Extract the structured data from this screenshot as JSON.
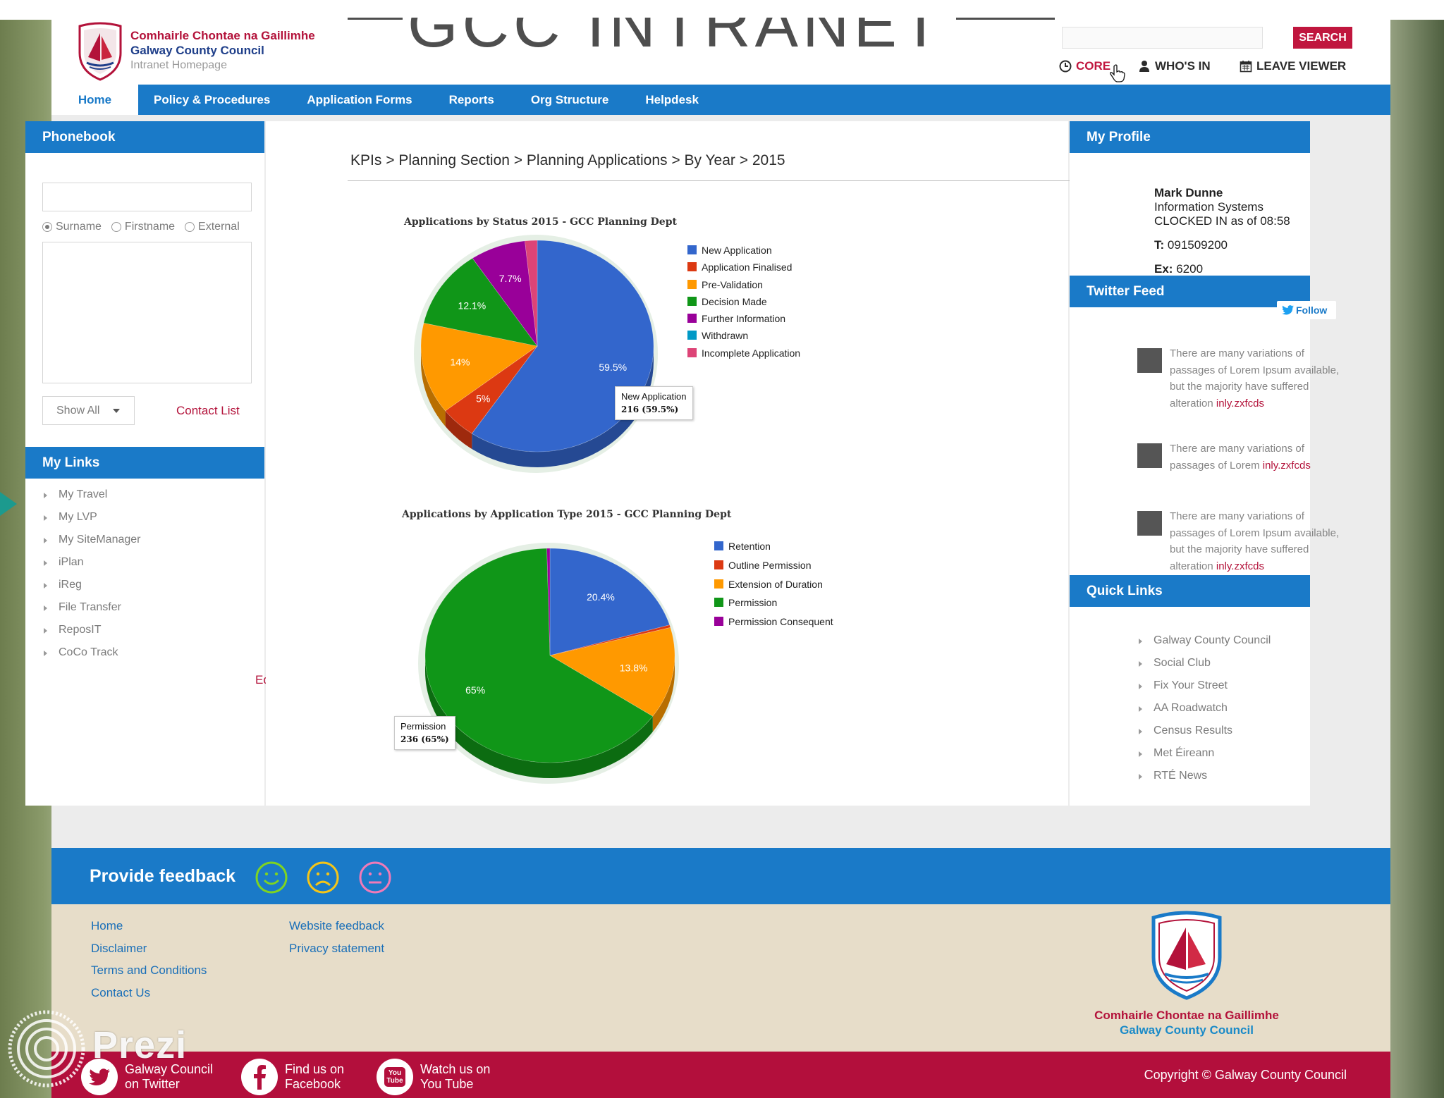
{
  "header": {
    "logo_irish": "Comhairle Chontae na Gaillimhe",
    "logo_english": "Galway County Council",
    "logo_sub": "Intranet Homepage",
    "title": "GCC INTRANET",
    "search_placeholder": "",
    "search_label": "SEARCH",
    "top_links": {
      "core": "CORE",
      "whos_in": "WHO'S IN",
      "leave_viewer": "LEAVE VIEWER"
    }
  },
  "nav": {
    "items": [
      "Home",
      "Policy & Procedures",
      "Application Forms",
      "Reports",
      "Org Structure",
      "Helpdesk"
    ],
    "active": "Home"
  },
  "phonebook": {
    "title": "Phonebook",
    "radios": [
      "Surname",
      "Firstname",
      "External"
    ],
    "selected_radio": "Surname",
    "show_all": "Show All",
    "contact_list": "Contact List"
  },
  "my_links": {
    "title": "My Links",
    "items": [
      "My Travel",
      "My LVP",
      "My SiteManager",
      "iPlan",
      "iReg",
      "File Transfer",
      "ReposIT",
      "CoCo Track"
    ],
    "edit": "Edit"
  },
  "breadcrumb": {
    "items": [
      "KPIs",
      "Planning Section",
      "Planning Applications",
      "By Year",
      "2015"
    ],
    "separator": ">"
  },
  "chart_data": [
    {
      "type": "pie",
      "title": "Applications by Status 2015 - GCC Planning Dept",
      "categories": [
        "New Application",
        "Application Finalised",
        "Pre-Validation",
        "Decision Made",
        "Further Information",
        "Withdrawn",
        "Incomplete Application"
      ],
      "values": [
        59.5,
        5,
        14,
        12.1,
        7.7,
        0,
        1.7
      ],
      "unit": "%",
      "colors": [
        "#3366cc",
        "#dc3912",
        "#ff9900",
        "#109618",
        "#990099",
        "#0099c6",
        "#dd4477"
      ],
      "slice_labels": [
        "59.5%",
        "5%",
        "14%",
        "12.1%",
        "7.7%",
        "",
        ""
      ],
      "legend": "right",
      "tooltip": {
        "label": "New Application",
        "value": "216 (59.5%)"
      }
    },
    {
      "type": "pie",
      "title": "Applications by Application Type 2015 - GCC Planning Dept",
      "categories": [
        "Retention",
        "Outline Permission",
        "Extension of Duration",
        "Permission",
        "Permission Consequent"
      ],
      "values": [
        20.4,
        0.4,
        13.8,
        65,
        0.4
      ],
      "unit": "%",
      "colors": [
        "#3366cc",
        "#dc3912",
        "#ff9900",
        "#109618",
        "#990099"
      ],
      "slice_labels": [
        "20.4%",
        "",
        "13.8%",
        "65%",
        ""
      ],
      "legend": "right",
      "tooltip": {
        "label": "Permission",
        "value": "236 (65%)"
      }
    }
  ],
  "profile": {
    "title": "My Profile",
    "name": "Mark Dunne",
    "dept": "Information Systems",
    "status": "CLOCKED IN as of 08:58",
    "tel_label": "T:",
    "tel": "091509200",
    "ext_label": "Ex:",
    "ext": "6200"
  },
  "twitter": {
    "title": "Twitter Feed",
    "follow": "Follow",
    "tweets": [
      {
        "text": "There are many variations of passages of Lorem Ipsum available, but the majority have suffered alteration",
        "link": "inly.zxfcds"
      },
      {
        "text": "There are many variations of passages of Lorem",
        "link": "inly.zxfcds"
      },
      {
        "text": "There are many variations of passages of Lorem Ipsum available, but the majority have suffered alteration",
        "link": "inly.zxfcds"
      }
    ]
  },
  "quick_links": {
    "title": "Quick Links",
    "items": [
      "Galway County Council",
      "Social Club",
      "Fix Your Street",
      "AA Roadwatch",
      "Census Results",
      "Met Éireann",
      "RTÉ News"
    ]
  },
  "feedback": {
    "label": "Provide feedback",
    "faces": [
      "happy-face-icon",
      "sad-face-icon",
      "neutral-face-icon"
    ]
  },
  "footer": {
    "col1": [
      "Home",
      "Disclaimer",
      "Terms and Conditions",
      "Contact Us"
    ],
    "col2": [
      "Website feedback",
      "Privacy statement"
    ],
    "crest_irish": "Comhairle Chontae na Gaillimhe",
    "crest_english": "Galway County Council"
  },
  "social": {
    "twitter_line1": "Galway Council",
    "twitter_line2": "on Twitter",
    "facebook_line1": "Find us on",
    "facebook_line2": "Facebook",
    "youtube_line1": "Watch us on",
    "youtube_line2": "You Tube",
    "youtube_icon_text": "You Tube",
    "copyright": "Copyright © Galway County Council"
  },
  "overlay": {
    "prezi": "Prezi"
  },
  "colors": {
    "brand_blue": "#1a7ac8",
    "brand_red": "#b3123a",
    "footer_beige": "#e7ddc9"
  }
}
